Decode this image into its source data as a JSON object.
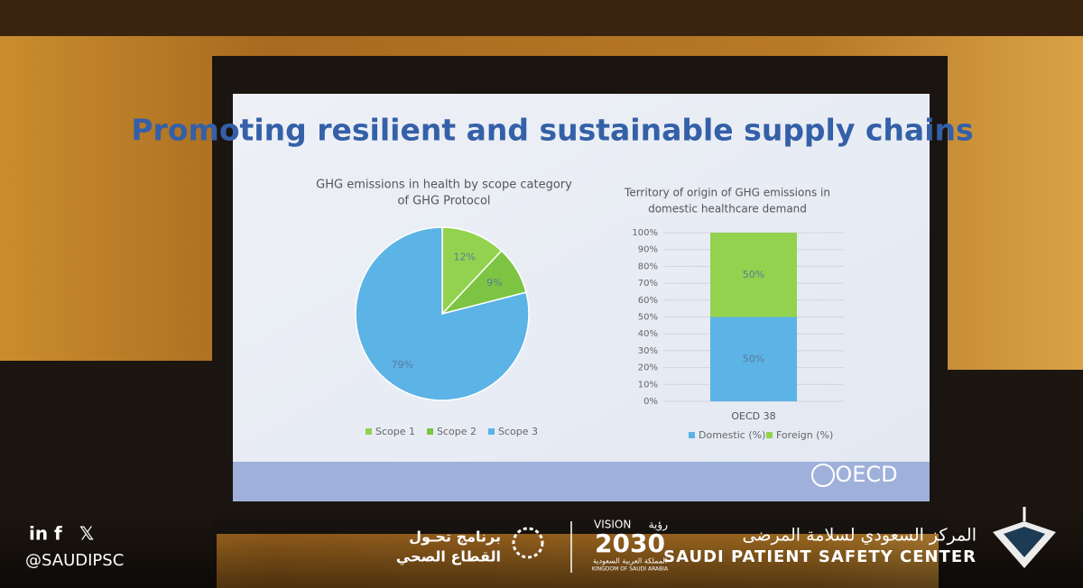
{
  "slide_title": "Promoting resilient and sustainable supply chains",
  "chart_data": [
    {
      "type": "pie",
      "title_lines": [
        "GHG emissions in health by scope category",
        "of GHG Protocol"
      ],
      "categories": [
        "Scope 1",
        "Scope 2",
        "Scope 3"
      ],
      "values": [
        12,
        9,
        79
      ],
      "value_labels": [
        "12%",
        "9%",
        "79%"
      ],
      "colors": [
        "#93d24e",
        "#7dc443",
        "#5cb3e6"
      ],
      "legend": "bottom"
    },
    {
      "type": "bar",
      "stacked": true,
      "title_lines": [
        "Territory of origin of GHG emissions in",
        "domestic healthcare demand"
      ],
      "categories": [
        "OECD 38"
      ],
      "series": [
        {
          "name": "Domestic (%)",
          "color": "#5cb3e6",
          "values": [
            50
          ],
          "value_labels": [
            "50%"
          ]
        },
        {
          "name": "Foreign (%)",
          "color": "#93d24e",
          "values": [
            50
          ],
          "value_labels": [
            "50%"
          ]
        }
      ],
      "ylim": [
        0,
        100
      ],
      "yticks": [
        {
          "value": 0,
          "label": "0%"
        },
        {
          "value": 10,
          "label": "10%"
        },
        {
          "value": 20,
          "label": "20%"
        },
        {
          "value": 30,
          "label": "30%"
        },
        {
          "value": 40,
          "label": "40%"
        },
        {
          "value": 50,
          "label": "50%"
        },
        {
          "value": 60,
          "label": "60%"
        },
        {
          "value": 70,
          "label": "70%"
        },
        {
          "value": 80,
          "label": "80%"
        },
        {
          "value": 90,
          "label": "90%"
        },
        {
          "value": 100,
          "label": "100%"
        }
      ],
      "grid": true,
      "legend": "bottom"
    }
  ],
  "slide_logo": "OECD",
  "footer": {
    "social": [
      "in",
      "f",
      "𝕏"
    ],
    "handle": "@SAUDIPSC",
    "program": [
      "برنامج تحـول",
      "القطاع الصحي"
    ],
    "vision": [
      "VISION",
      "رؤية",
      "2030",
      "المملكة العربية السعودية",
      "KINGDOM OF SAUDI ARABIA"
    ],
    "center_ar": "المركز السعودي لسلامة المرضى",
    "center_en": "SAUDI PATIENT SAFETY CENTER"
  }
}
